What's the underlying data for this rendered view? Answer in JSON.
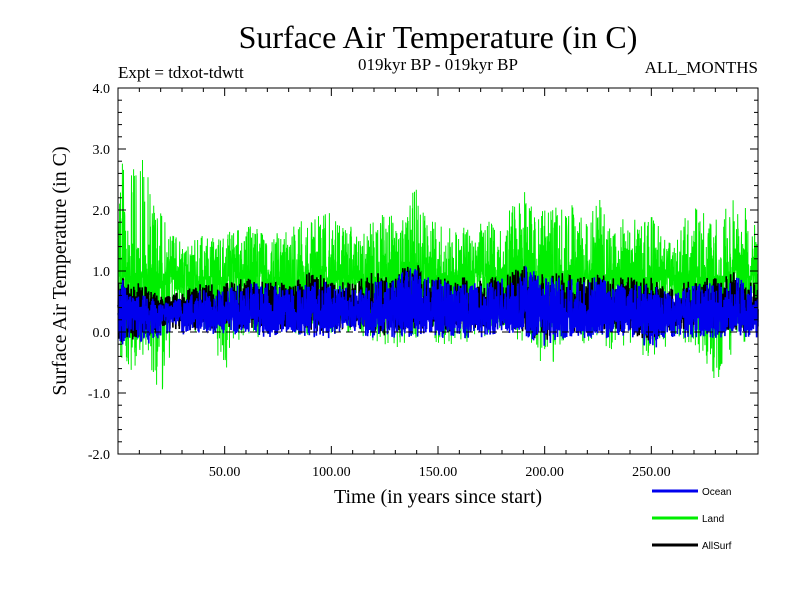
{
  "chart_data": {
    "type": "line",
    "title": "Surface Air Temperature (in C)",
    "experiment": "Expt = tdxot-tdwtt",
    "period": "019kyr BP - 019kyr BP",
    "months": "ALL_MONTHS",
    "xlabel": "Time (in years since start)",
    "ylabel": "Surface Air Temperature (in C)",
    "xlim": [
      0,
      300
    ],
    "ylim": [
      -2.0,
      4.0
    ],
    "x_ticks": [
      50,
      100,
      150,
      200,
      250
    ],
    "x_tick_labels": [
      "50.00",
      "100.00",
      "150.00",
      "200.00",
      "250.00"
    ],
    "y_ticks": [
      -2,
      -1,
      0,
      1,
      2,
      3,
      4
    ],
    "y_tick_labels": [
      "-2.0",
      "-1.0",
      "0.0",
      "1.0",
      "2.0",
      "3.0",
      "4.0"
    ],
    "zero_line": true,
    "grid": false,
    "legend_position": "bottom-right",
    "series": [
      {
        "name": "Land",
        "color": "#00ee00",
        "approx_mean": 0.9,
        "x": [
          0,
          2,
          5,
          10,
          15,
          20,
          25,
          30,
          40,
          50,
          60,
          70,
          80,
          90,
          100,
          110,
          120,
          125,
          130,
          140,
          145,
          150,
          160,
          170,
          180,
          190,
          195,
          200,
          210,
          220,
          225,
          230,
          240,
          250,
          260,
          270,
          280,
          290,
          300
        ],
        "peak_values": [
          2.6,
          3.1,
          2.4,
          3.1,
          2.6,
          2.0,
          1.6,
          1.5,
          1.6,
          1.6,
          1.9,
          1.6,
          1.7,
          1.9,
          2.0,
          1.7,
          1.8,
          2.1,
          1.8,
          2.4,
          1.8,
          1.9,
          1.7,
          1.8,
          1.9,
          2.4,
          2.0,
          2.0,
          2.2,
          1.8,
          2.3,
          1.8,
          1.9,
          1.9,
          1.6,
          2.1,
          2.0,
          2.2,
          1.8
        ],
        "trough_values": [
          -0.3,
          -0.5,
          -0.7,
          -0.5,
          -0.6,
          -1.15,
          -0.3,
          0.1,
          -0.2,
          -0.7,
          0.0,
          -0.2,
          0.0,
          -0.1,
          -0.1,
          0.0,
          -0.2,
          -0.3,
          -0.3,
          -0.1,
          0.0,
          -0.2,
          -0.2,
          -0.1,
          0.0,
          -0.2,
          -0.3,
          -0.8,
          -0.1,
          -0.2,
          -0.1,
          -0.3,
          -0.2,
          -0.5,
          -0.2,
          -0.2,
          -0.85,
          -0.2,
          -0.2
        ]
      },
      {
        "name": "Ocean",
        "color": "#0000ee",
        "approx_mean": 0.3,
        "x": [
          0,
          2,
          5,
          10,
          15,
          20,
          25,
          30,
          40,
          50,
          60,
          70,
          80,
          90,
          100,
          110,
          120,
          125,
          130,
          140,
          145,
          150,
          160,
          170,
          180,
          190,
          195,
          200,
          210,
          220,
          225,
          230,
          240,
          250,
          260,
          270,
          280,
          290,
          300
        ],
        "peak_values": [
          0.6,
          0.9,
          0.6,
          0.6,
          0.6,
          0.5,
          0.5,
          0.6,
          0.7,
          0.7,
          0.8,
          0.8,
          0.7,
          0.9,
          0.8,
          0.7,
          0.9,
          0.8,
          0.9,
          1.2,
          0.9,
          0.9,
          0.8,
          0.8,
          0.9,
          1.1,
          1.0,
          0.9,
          0.9,
          0.8,
          1.0,
          0.8,
          0.8,
          0.8,
          0.6,
          0.8,
          0.8,
          0.9,
          0.7
        ],
        "trough_values": [
          -0.2,
          -0.25,
          -0.25,
          -0.2,
          -0.2,
          -0.1,
          0.0,
          -0.05,
          0.0,
          -0.1,
          0.0,
          -0.1,
          0.0,
          -0.1,
          -0.1,
          0.0,
          -0.1,
          -0.15,
          -0.1,
          -0.1,
          0.0,
          -0.1,
          -0.1,
          -0.1,
          0.0,
          -0.1,
          -0.2,
          -0.25,
          -0.1,
          -0.1,
          -0.1,
          -0.1,
          -0.1,
          -0.3,
          -0.1,
          -0.1,
          -0.1,
          -0.1,
          -0.1
        ]
      },
      {
        "name": "AllSurf",
        "color": "#000000",
        "approx_mean": 0.4,
        "x": [
          0,
          2,
          5,
          10,
          15,
          20,
          25,
          30,
          40,
          50,
          60,
          70,
          80,
          90,
          100,
          110,
          120,
          125,
          130,
          140,
          145,
          150,
          160,
          170,
          180,
          190,
          195,
          200,
          210,
          220,
          225,
          230,
          240,
          250,
          260,
          270,
          280,
          290,
          300
        ],
        "peak_values": [
          0.8,
          0.9,
          0.8,
          0.8,
          0.7,
          0.6,
          0.6,
          0.7,
          0.8,
          0.8,
          0.9,
          0.9,
          0.8,
          1.0,
          0.9,
          0.8,
          1.0,
          0.9,
          1.0,
          1.15,
          0.9,
          0.9,
          0.9,
          0.9,
          0.9,
          1.1,
          1.0,
          1.0,
          1.0,
          0.9,
          1.0,
          0.9,
          0.9,
          0.9,
          0.7,
          0.9,
          0.9,
          1.0,
          0.8
        ],
        "trough_values": [
          -0.1,
          -0.2,
          -0.2,
          -0.1,
          -0.1,
          0.0,
          0.05,
          0.0,
          0.05,
          0.0,
          0.05,
          0.0,
          0.05,
          0.0,
          0.0,
          0.05,
          0.0,
          -0.1,
          0.0,
          0.0,
          0.05,
          0.0,
          0.0,
          0.0,
          0.05,
          0.0,
          -0.1,
          -0.15,
          0.0,
          0.0,
          0.0,
          0.0,
          0.0,
          -0.2,
          0.0,
          0.0,
          0.0,
          0.0,
          0.0
        ]
      }
    ]
  }
}
